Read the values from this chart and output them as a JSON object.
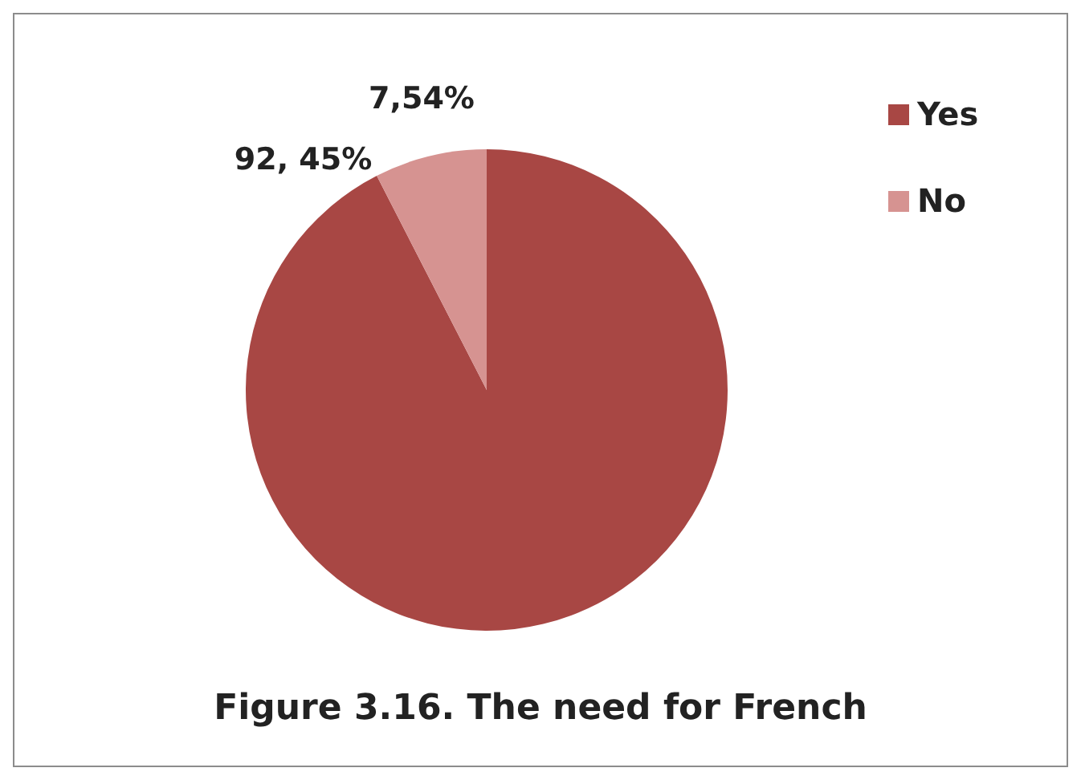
{
  "chart_data": {
    "type": "pie",
    "title": "Figure 3.16. The need for French",
    "categories": [
      "Yes",
      "No"
    ],
    "values": [
      92.45,
      7.54
    ],
    "value_labels": [
      "92, 45%",
      "7,54%"
    ],
    "colors": [
      "#a84744",
      "#d69391"
    ],
    "legend": "top right"
  }
}
